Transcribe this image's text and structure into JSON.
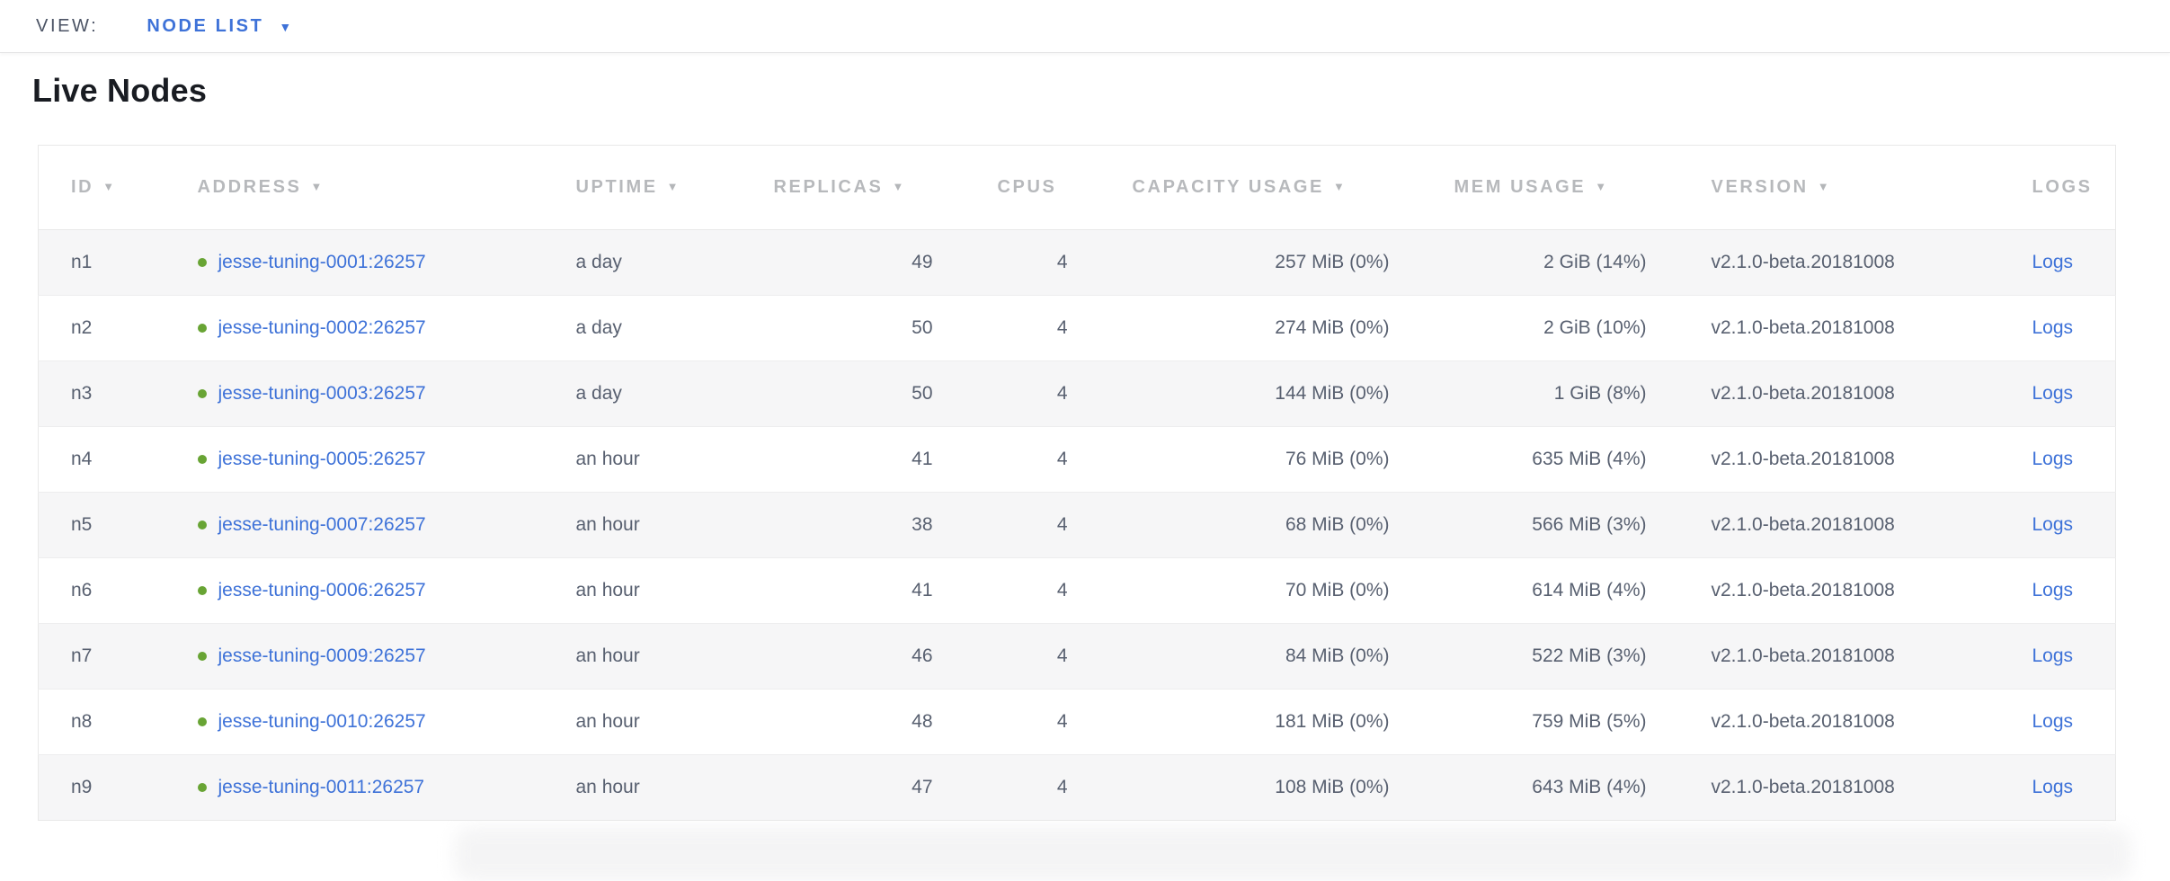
{
  "view_bar": {
    "label": "VIEW:",
    "selected_view": "NODE LIST"
  },
  "icons": {
    "caret_down": "▼",
    "sort_desc": "▼",
    "node_status": "healthy-dot"
  },
  "page": {
    "title": "Live Nodes"
  },
  "colors": {
    "link-blue": "#3e72d8",
    "healthy-green": "#68a434",
    "slate": "#586070",
    "header-gray": "#b7b9bc",
    "border": "#e8e8e8",
    "stripe": "#f6f6f7",
    "title-dark": "#191c22",
    "viewbar-label": "#4b5364"
  },
  "table": {
    "columns": [
      {
        "key": "id",
        "label": "ID",
        "sortable": true,
        "cell_align": "left"
      },
      {
        "key": "address",
        "label": "ADDRESS",
        "sortable": true,
        "cell_align": "left"
      },
      {
        "key": "uptime",
        "label": "UPTIME",
        "sortable": true,
        "cell_align": "left"
      },
      {
        "key": "replicas",
        "label": "REPLICAS",
        "sortable": true,
        "cell_align": "right"
      },
      {
        "key": "cpus",
        "label": "CPUS",
        "sortable": false,
        "cell_align": "right"
      },
      {
        "key": "capacity_usage",
        "label": "CAPACITY USAGE",
        "sortable": true,
        "cell_align": "right"
      },
      {
        "key": "mem_usage",
        "label": "MEM USAGE",
        "sortable": true,
        "cell_align": "right"
      },
      {
        "key": "version",
        "label": "VERSION",
        "sortable": true,
        "cell_align": "left"
      },
      {
        "key": "logs",
        "label": "LOGS",
        "sortable": false,
        "cell_align": "left"
      }
    ],
    "rows": [
      {
        "id": "n1",
        "status": "healthy",
        "address": "jesse-tuning-0001:26257",
        "uptime": "a day",
        "replicas": "49",
        "cpus": "4",
        "capacity_usage": "257 MiB (0%)",
        "mem_usage": "2 GiB (14%)",
        "version": "v2.1.0-beta.20181008",
        "logs": "Logs"
      },
      {
        "id": "n2",
        "status": "healthy",
        "address": "jesse-tuning-0002:26257",
        "uptime": "a day",
        "replicas": "50",
        "cpus": "4",
        "capacity_usage": "274 MiB (0%)",
        "mem_usage": "2 GiB (10%)",
        "version": "v2.1.0-beta.20181008",
        "logs": "Logs"
      },
      {
        "id": "n3",
        "status": "healthy",
        "address": "jesse-tuning-0003:26257",
        "uptime": "a day",
        "replicas": "50",
        "cpus": "4",
        "capacity_usage": "144 MiB (0%)",
        "mem_usage": "1 GiB (8%)",
        "version": "v2.1.0-beta.20181008",
        "logs": "Logs"
      },
      {
        "id": "n4",
        "status": "healthy",
        "address": "jesse-tuning-0005:26257",
        "uptime": "an hour",
        "replicas": "41",
        "cpus": "4",
        "capacity_usage": "76 MiB (0%)",
        "mem_usage": "635 MiB (4%)",
        "version": "v2.1.0-beta.20181008",
        "logs": "Logs"
      },
      {
        "id": "n5",
        "status": "healthy",
        "address": "jesse-tuning-0007:26257",
        "uptime": "an hour",
        "replicas": "38",
        "cpus": "4",
        "capacity_usage": "68 MiB (0%)",
        "mem_usage": "566 MiB (3%)",
        "version": "v2.1.0-beta.20181008",
        "logs": "Logs"
      },
      {
        "id": "n6",
        "status": "healthy",
        "address": "jesse-tuning-0006:26257",
        "uptime": "an hour",
        "replicas": "41",
        "cpus": "4",
        "capacity_usage": "70 MiB (0%)",
        "mem_usage": "614 MiB (4%)",
        "version": "v2.1.0-beta.20181008",
        "logs": "Logs"
      },
      {
        "id": "n7",
        "status": "healthy",
        "address": "jesse-tuning-0009:26257",
        "uptime": "an hour",
        "replicas": "46",
        "cpus": "4",
        "capacity_usage": "84 MiB (0%)",
        "mem_usage": "522 MiB (3%)",
        "version": "v2.1.0-beta.20181008",
        "logs": "Logs"
      },
      {
        "id": "n8",
        "status": "healthy",
        "address": "jesse-tuning-0010:26257",
        "uptime": "an hour",
        "replicas": "48",
        "cpus": "4",
        "capacity_usage": "181 MiB (0%)",
        "mem_usage": "759 MiB (5%)",
        "version": "v2.1.0-beta.20181008",
        "logs": "Logs"
      },
      {
        "id": "n9",
        "status": "healthy",
        "address": "jesse-tuning-0011:26257",
        "uptime": "an hour",
        "replicas": "47",
        "cpus": "4",
        "capacity_usage": "108 MiB (0%)",
        "mem_usage": "643 MiB (4%)",
        "version": "v2.1.0-beta.20181008",
        "logs": "Logs"
      }
    ]
  }
}
